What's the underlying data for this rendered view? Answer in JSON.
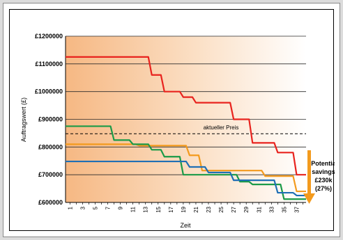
{
  "chart_data": {
    "type": "line",
    "title": "",
    "xlabel": "Zeit",
    "ylabel": "Auftragswert (£)",
    "ylim": [
      600000,
      1200000
    ],
    "yticks": [
      600000,
      700000,
      800000,
      900000,
      1000000,
      1100000,
      1200000
    ],
    "ytick_labels": [
      "£600000",
      "£700000",
      "£800000",
      "£900000",
      "£1000000",
      "£1100000",
      "£1200000"
    ],
    "x": [
      1,
      2,
      3,
      4,
      5,
      6,
      7,
      8,
      9,
      10,
      11,
      12,
      13,
      14,
      15,
      16,
      17,
      18,
      19,
      20,
      21,
      22,
      23,
      24,
      25,
      26,
      27,
      28,
      29,
      30,
      31,
      32,
      33,
      34,
      35,
      36,
      37,
      38
    ],
    "xtick_labels": [
      "1",
      "3",
      "5",
      "7",
      "9",
      "11",
      "13",
      "15",
      "17",
      "19",
      "21",
      "23",
      "25",
      "27",
      "29",
      "31",
      "33",
      "35",
      "37"
    ],
    "xtick_values": [
      1,
      3,
      5,
      7,
      9,
      11,
      13,
      15,
      17,
      19,
      21,
      23,
      25,
      27,
      29,
      31,
      33,
      35,
      37
    ],
    "series": [
      {
        "color": "#e8231e",
        "values": [
          1125000,
          1125000,
          1125000,
          1125000,
          1125000,
          1125000,
          1125000,
          1125000,
          1125000,
          1125000,
          1125000,
          1125000,
          1125000,
          1060000,
          1060000,
          1000000,
          1000000,
          1000000,
          980000,
          980000,
          960000,
          960000,
          960000,
          960000,
          960000,
          960000,
          900000,
          900000,
          900000,
          815000,
          815000,
          815000,
          815000,
          780000,
          780000,
          780000,
          700000,
          700000
        ]
      },
      {
        "color": "#f39a1d",
        "values": [
          810000,
          810000,
          810000,
          810000,
          810000,
          810000,
          810000,
          810000,
          810000,
          810000,
          810000,
          805000,
          805000,
          805000,
          805000,
          805000,
          805000,
          805000,
          805000,
          770000,
          770000,
          715000,
          715000,
          715000,
          715000,
          715000,
          715000,
          715000,
          715000,
          715000,
          715000,
          695000,
          695000,
          695000,
          695000,
          695000,
          640000,
          640000
        ]
      },
      {
        "color": "#1a9a47",
        "values": [
          875000,
          875000,
          875000,
          875000,
          875000,
          875000,
          875000,
          825000,
          825000,
          825000,
          810000,
          810000,
          810000,
          790000,
          790000,
          765000,
          765000,
          765000,
          700000,
          700000,
          700000,
          700000,
          700000,
          700000,
          700000,
          700000,
          700000,
          675000,
          675000,
          665000,
          665000,
          665000,
          665000,
          665000,
          612000,
          612000,
          612000,
          612000
        ]
      },
      {
        "color": "#1f6fb5",
        "values": [
          748000,
          748000,
          748000,
          748000,
          748000,
          748000,
          748000,
          748000,
          748000,
          748000,
          748000,
          748000,
          748000,
          748000,
          748000,
          748000,
          748000,
          748000,
          748000,
          728000,
          728000,
          728000,
          708000,
          708000,
          708000,
          708000,
          680000,
          680000,
          680000,
          680000,
          680000,
          680000,
          680000,
          635000,
          635000,
          635000,
          625000,
          625000
        ]
      }
    ],
    "reference_line": {
      "label": "aktueller Preis",
      "value": 848000
    },
    "annotation": [
      "Potentia",
      "savings",
      "£230k",
      "(27%)"
    ],
    "grid": "horizontal",
    "background": "gradient orange to white"
  }
}
